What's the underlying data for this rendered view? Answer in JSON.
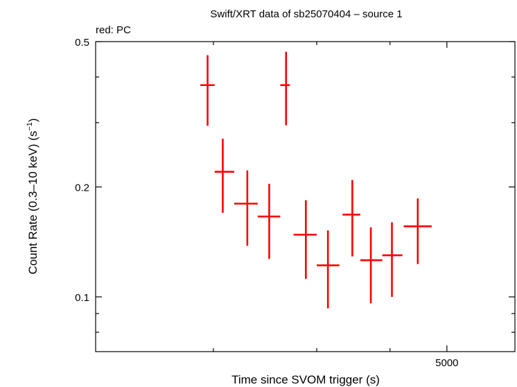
{
  "chart_data": {
    "type": "scatter",
    "title": "Swift/XRT data of sb25070404 – source 1",
    "subtitle": "red: PC",
    "xlabel": "Time since SVOM trigger (s)",
    "ylabel_main": "Count Rate (0.3–10 keV) (s",
    "ylabel_sup": "−1",
    "ylabel_end": ")",
    "x_scale": "log",
    "y_scale": "log",
    "xlim": [
      1260,
      6530
    ],
    "ylim": [
      0.0708,
      0.5
    ],
    "x_ticks_major": [
      {
        "value": 5000,
        "label": "5000"
      }
    ],
    "x_ticks_minor": [
      2000,
      3000,
      4000
    ],
    "y_ticks_major": [
      {
        "value": 0.1,
        "label": "0.1"
      },
      {
        "value": 0.2,
        "label": "0.2"
      },
      {
        "value": 0.5,
        "label": "0.5"
      }
    ],
    "y_ticks_minor": [
      0.08,
      0.09,
      0.3,
      0.4
    ],
    "series": [
      {
        "color": "#ff0000",
        "points": [
          {
            "x": 1955,
            "xmin": 1900,
            "xmax": 2010,
            "y": 0.38,
            "ymin": 0.294,
            "ymax": 0.459
          },
          {
            "x": 2075,
            "xmin": 2010,
            "xmax": 2170,
            "y": 0.22,
            "ymin": 0.17,
            "ymax": 0.271
          },
          {
            "x": 2285,
            "xmin": 2170,
            "xmax": 2380,
            "y": 0.18,
            "ymin": 0.138,
            "ymax": 0.222
          },
          {
            "x": 2490,
            "xmin": 2380,
            "xmax": 2600,
            "y": 0.166,
            "ymin": 0.127,
            "ymax": 0.204
          },
          {
            "x": 2660,
            "xmin": 2600,
            "xmax": 2700,
            "y": 0.38,
            "ymin": 0.295,
            "ymax": 0.469
          },
          {
            "x": 2875,
            "xmin": 2740,
            "xmax": 3000,
            "y": 0.148,
            "ymin": 0.112,
            "ymax": 0.184
          },
          {
            "x": 3135,
            "xmin": 3000,
            "xmax": 3280,
            "y": 0.122,
            "ymin": 0.093,
            "ymax": 0.152
          },
          {
            "x": 3450,
            "xmin": 3320,
            "xmax": 3560,
            "y": 0.168,
            "ymin": 0.129,
            "ymax": 0.209
          },
          {
            "x": 3710,
            "xmin": 3560,
            "xmax": 3880,
            "y": 0.126,
            "ymin": 0.096,
            "ymax": 0.155
          },
          {
            "x": 4030,
            "xmin": 3880,
            "xmax": 4200,
            "y": 0.13,
            "ymin": 0.1,
            "ymax": 0.16
          },
          {
            "x": 4460,
            "xmin": 4220,
            "xmax": 4710,
            "y": 0.156,
            "ymin": 0.123,
            "ymax": 0.186
          }
        ]
      }
    ]
  }
}
